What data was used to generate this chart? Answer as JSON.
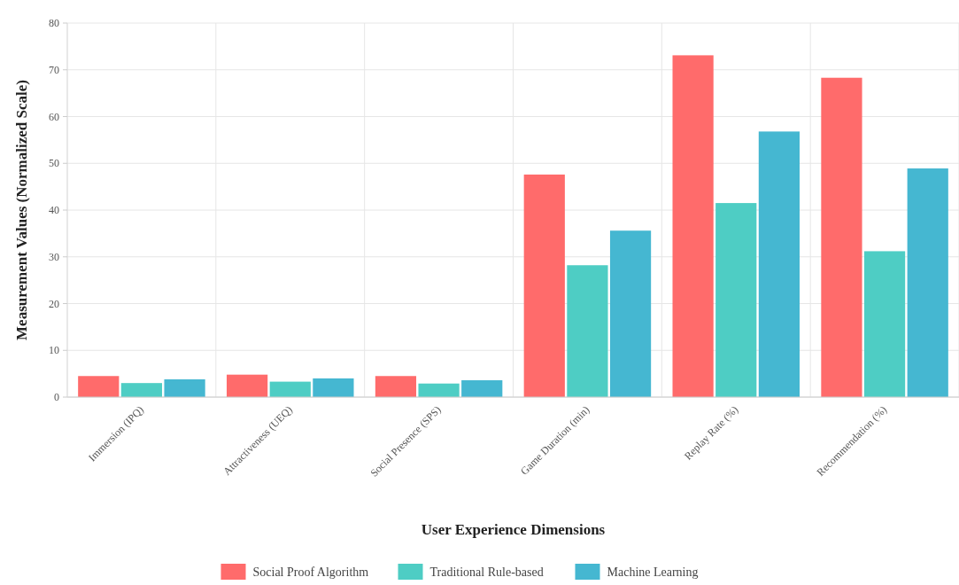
{
  "chart_data": {
    "type": "bar",
    "xlabel": "User Experience Dimensions",
    "ylabel": "Measurement Values (Normalized Scale)",
    "categories": [
      "Immersion (IPQ)",
      "Attractiveness (UEQ)",
      "Social Presence (SPS)",
      "Game Duration (min)",
      "Replay Rate (%)",
      "Recommendation (%)"
    ],
    "series": [
      {
        "name": "Social Proof Algorithm",
        "color": "#ff6b6b",
        "values": [
          4.5,
          4.8,
          4.5,
          47.6,
          73.1,
          68.3
        ]
      },
      {
        "name": "Traditional Rule-based",
        "color": "#4ecdc4",
        "values": [
          3.0,
          3.3,
          2.9,
          28.2,
          41.5,
          31.2
        ]
      },
      {
        "name": "Machine Learning",
        "color": "#45b7d1",
        "values": [
          3.8,
          4.0,
          3.6,
          35.6,
          56.8,
          48.9
        ]
      }
    ],
    "ylim": [
      0,
      80
    ],
    "yticks": [
      0,
      10,
      20,
      30,
      40,
      50,
      60,
      70,
      80
    ],
    "grid": true,
    "legend": "bottom"
  }
}
